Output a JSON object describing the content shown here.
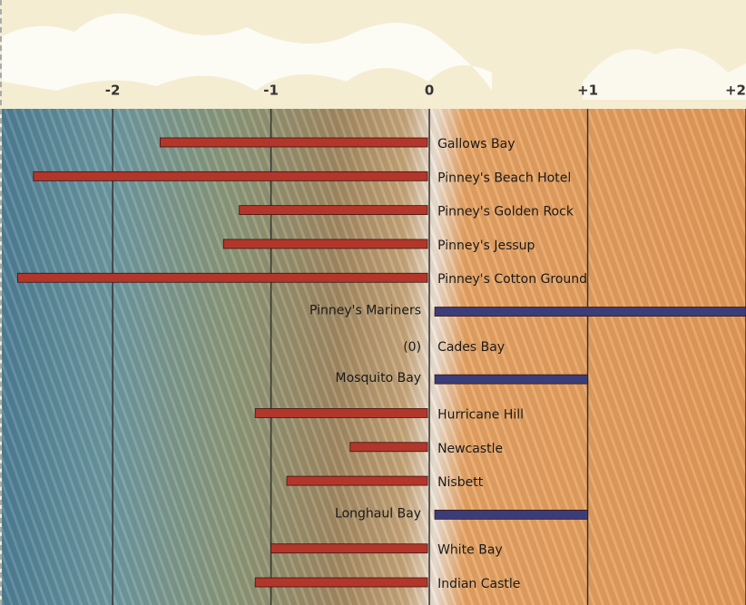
{
  "chart_data": {
    "type": "bar",
    "orientation": "horizontal",
    "categories": [
      "Gallows Bay",
      "Pinney's Beach Hotel",
      "Pinney's Golden Rock",
      "Pinney's Jessup",
      "Pinney's Cotton Ground",
      "Pinney's Mariners",
      "Cades Bay",
      "Mosquito Bay",
      "Hurricane Hill",
      "Newcastle",
      "Nisbett",
      "Longhaul Bay",
      "White Bay",
      "Indian Castle"
    ],
    "values": [
      -1.7,
      -2.5,
      -1.2,
      -1.3,
      -2.6,
      2.0,
      0,
      1.0,
      -1.1,
      -0.5,
      -0.9,
      1.0,
      -1.0,
      -1.1
    ],
    "value_labels": [
      null,
      null,
      null,
      null,
      null,
      null,
      "(0)",
      null,
      null,
      null,
      null,
      null,
      null,
      null
    ],
    "negative_color": "#b3362b",
    "positive_color": "#3b3d78",
    "xlim": [
      -2.7,
      2.0
    ],
    "xticks": [
      -2,
      -1,
      0,
      {
        "value": 1,
        "label": "+1"
      },
      {
        "value": 2,
        "label": "+2"
      }
    ],
    "grid": true
  }
}
